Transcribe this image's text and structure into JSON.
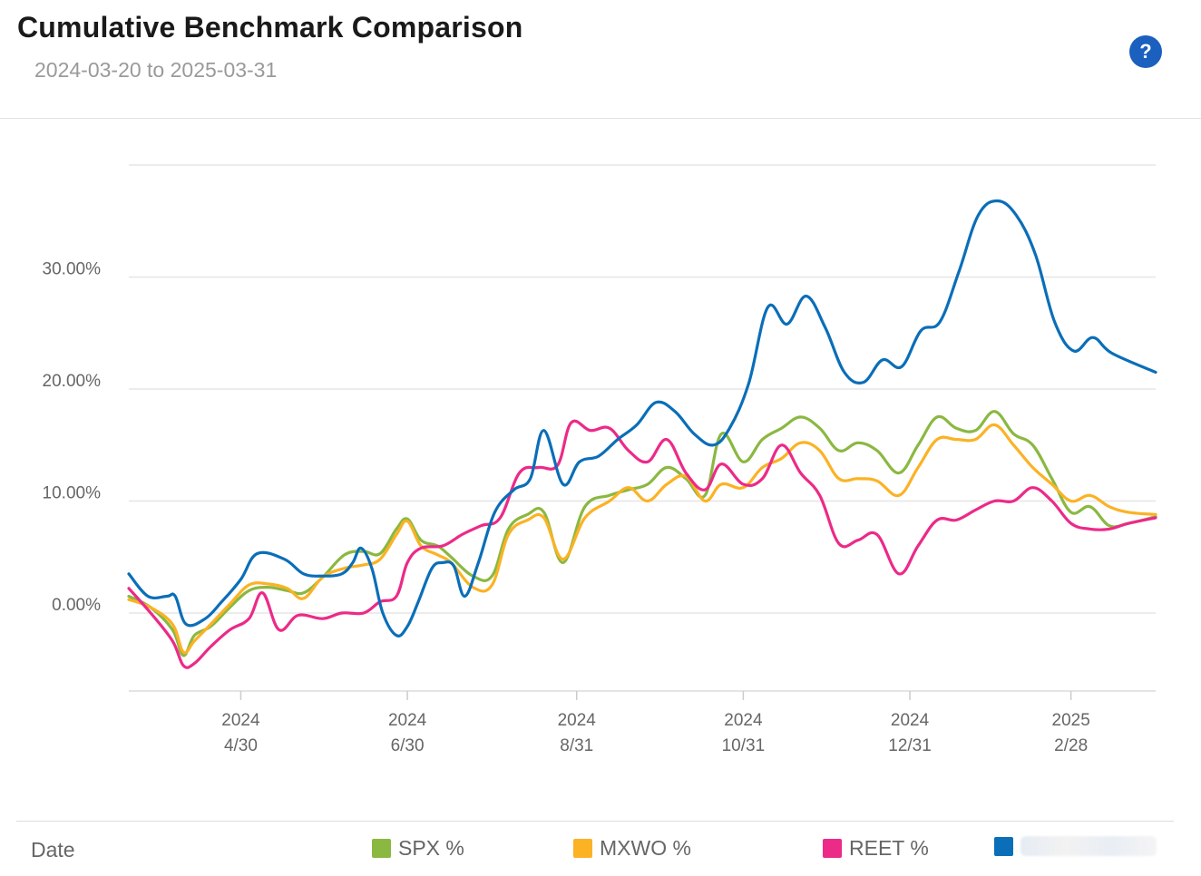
{
  "header": {
    "title": "Cumulative Benchmark Comparison",
    "subtitle": "2024-03-20 to 2025-03-31",
    "help_label": "?"
  },
  "footer": {
    "date_label": "Date"
  },
  "chart_data": {
    "type": "line",
    "title": "Cumulative Benchmark Comparison",
    "subtitle": "2024-03-20 to 2025-03-31",
    "x_range": [
      "2024-03-20",
      "2025-03-31"
    ],
    "ylim": [
      -7,
      40
    ],
    "y_ticks": [
      0,
      10,
      20,
      30
    ],
    "y_tick_labels": [
      "0.00%",
      "10.00%",
      "20.00%",
      "30.00%"
    ],
    "x_ticks": [
      {
        "date": "2024-04-30",
        "year": "2024",
        "label": "4/30"
      },
      {
        "date": "2024-06-30",
        "year": "2024",
        "label": "6/30"
      },
      {
        "date": "2024-08-31",
        "year": "2024",
        "label": "8/31"
      },
      {
        "date": "2024-10-31",
        "year": "2024",
        "label": "10/31"
      },
      {
        "date": "2024-12-31",
        "year": "2024",
        "label": "12/31"
      },
      {
        "date": "2025-02-28",
        "year": "2025",
        "label": "2/28"
      }
    ],
    "grid": "horizontal",
    "legend_position": "bottom",
    "series": [
      {
        "name": "SPX %",
        "color": "#8ab841",
        "points": [
          [
            "2024-03-20",
            1.5
          ],
          [
            "2024-03-28",
            0.5
          ],
          [
            "2024-04-05",
            -1.5
          ],
          [
            "2024-04-09",
            -3.8
          ],
          [
            "2024-04-13",
            -2.0
          ],
          [
            "2024-04-19",
            -1.2
          ],
          [
            "2024-04-26",
            0.5
          ],
          [
            "2024-05-03",
            2.0
          ],
          [
            "2024-05-10",
            2.3
          ],
          [
            "2024-05-17",
            2.0
          ],
          [
            "2024-05-23",
            1.8
          ],
          [
            "2024-05-30",
            3.2
          ],
          [
            "2024-06-07",
            5.2
          ],
          [
            "2024-06-14",
            5.5
          ],
          [
            "2024-06-20",
            5.3
          ],
          [
            "2024-06-26",
            7.5
          ],
          [
            "2024-06-30",
            8.4
          ],
          [
            "2024-07-05",
            6.5
          ],
          [
            "2024-07-11",
            6.0
          ],
          [
            "2024-07-16",
            5.0
          ],
          [
            "2024-07-24",
            3.3
          ],
          [
            "2024-07-31",
            3.3
          ],
          [
            "2024-08-06",
            7.5
          ],
          [
            "2024-08-13",
            8.8
          ],
          [
            "2024-08-19",
            9.0
          ],
          [
            "2024-08-26",
            4.5
          ],
          [
            "2024-09-03",
            9.5
          ],
          [
            "2024-09-12",
            10.5
          ],
          [
            "2024-09-19",
            11.0
          ],
          [
            "2024-09-26",
            11.5
          ],
          [
            "2024-10-03",
            13.0
          ],
          [
            "2024-10-10",
            12.0
          ],
          [
            "2024-10-17",
            10.5
          ],
          [
            "2024-10-23",
            16.0
          ],
          [
            "2024-10-31",
            13.5
          ],
          [
            "2024-11-07",
            15.5
          ],
          [
            "2024-11-14",
            16.5
          ],
          [
            "2024-11-21",
            17.5
          ],
          [
            "2024-11-28",
            16.5
          ],
          [
            "2024-12-05",
            14.5
          ],
          [
            "2024-12-12",
            15.2
          ],
          [
            "2024-12-19",
            14.5
          ],
          [
            "2024-12-27",
            12.5
          ],
          [
            "2025-01-03",
            15.0
          ],
          [
            "2025-01-10",
            17.5
          ],
          [
            "2025-01-17",
            16.5
          ],
          [
            "2025-01-24",
            16.3
          ],
          [
            "2025-01-31",
            18.0
          ],
          [
            "2025-02-07",
            16.0
          ],
          [
            "2025-02-14",
            15.0
          ],
          [
            "2025-02-21",
            12.0
          ],
          [
            "2025-02-28",
            9.0
          ],
          [
            "2025-03-07",
            9.5
          ],
          [
            "2025-03-14",
            7.8
          ],
          [
            "2025-03-21",
            8.0
          ],
          [
            "2025-03-31",
            8.6
          ]
        ]
      },
      {
        "name": "MXWO %",
        "color": "#fbb224",
        "points": [
          [
            "2024-03-20",
            1.2
          ],
          [
            "2024-03-28",
            0.5
          ],
          [
            "2024-04-05",
            -1.0
          ],
          [
            "2024-04-09",
            -3.5
          ],
          [
            "2024-04-13",
            -2.5
          ],
          [
            "2024-04-19",
            -1.0
          ],
          [
            "2024-04-26",
            0.8
          ],
          [
            "2024-05-03",
            2.5
          ],
          [
            "2024-05-10",
            2.6
          ],
          [
            "2024-05-17",
            2.2
          ],
          [
            "2024-05-23",
            1.3
          ],
          [
            "2024-05-30",
            3.2
          ],
          [
            "2024-06-07",
            4.0
          ],
          [
            "2024-06-14",
            4.3
          ],
          [
            "2024-06-20",
            4.8
          ],
          [
            "2024-06-26",
            7.0
          ],
          [
            "2024-06-30",
            8.2
          ],
          [
            "2024-07-05",
            6.0
          ],
          [
            "2024-07-11",
            5.2
          ],
          [
            "2024-07-16",
            4.5
          ],
          [
            "2024-07-24",
            2.3
          ],
          [
            "2024-07-31",
            2.5
          ],
          [
            "2024-08-06",
            7.0
          ],
          [
            "2024-08-13",
            8.3
          ],
          [
            "2024-08-19",
            8.5
          ],
          [
            "2024-08-26",
            4.8
          ],
          [
            "2024-09-03",
            8.5
          ],
          [
            "2024-09-12",
            10.0
          ],
          [
            "2024-09-19",
            11.2
          ],
          [
            "2024-09-26",
            10.0
          ],
          [
            "2024-10-03",
            11.5
          ],
          [
            "2024-10-10",
            12.2
          ],
          [
            "2024-10-17",
            10.0
          ],
          [
            "2024-10-23",
            11.5
          ],
          [
            "2024-10-31",
            11.2
          ],
          [
            "2024-11-07",
            13.0
          ],
          [
            "2024-11-14",
            13.8
          ],
          [
            "2024-11-21",
            15.2
          ],
          [
            "2024-11-28",
            14.5
          ],
          [
            "2024-12-05",
            12.0
          ],
          [
            "2024-12-12",
            12.0
          ],
          [
            "2024-12-19",
            11.8
          ],
          [
            "2024-12-27",
            10.5
          ],
          [
            "2025-01-03",
            13.0
          ],
          [
            "2025-01-10",
            15.5
          ],
          [
            "2025-01-17",
            15.5
          ],
          [
            "2025-01-24",
            15.5
          ],
          [
            "2025-01-31",
            16.8
          ],
          [
            "2025-02-07",
            15.0
          ],
          [
            "2025-02-14",
            13.0
          ],
          [
            "2025-02-21",
            11.5
          ],
          [
            "2025-02-28",
            10.0
          ],
          [
            "2025-03-07",
            10.5
          ],
          [
            "2025-03-14",
            9.5
          ],
          [
            "2025-03-21",
            9.0
          ],
          [
            "2025-03-31",
            8.8
          ]
        ]
      },
      {
        "name": "REET %",
        "color": "#ec2a88",
        "points": [
          [
            "2024-03-20",
            2.2
          ],
          [
            "2024-03-28",
            0.0
          ],
          [
            "2024-04-05",
            -2.5
          ],
          [
            "2024-04-09",
            -4.7
          ],
          [
            "2024-04-13",
            -4.5
          ],
          [
            "2024-04-19",
            -3.0
          ],
          [
            "2024-04-26",
            -1.5
          ],
          [
            "2024-05-03",
            -0.5
          ],
          [
            "2024-05-08",
            1.8
          ],
          [
            "2024-05-14",
            -1.5
          ],
          [
            "2024-05-21",
            -0.2
          ],
          [
            "2024-05-30",
            -0.5
          ],
          [
            "2024-06-06",
            0.0
          ],
          [
            "2024-06-14",
            0.0
          ],
          [
            "2024-06-20",
            1.0
          ],
          [
            "2024-06-26",
            1.5
          ],
          [
            "2024-06-30",
            4.5
          ],
          [
            "2024-07-05",
            5.8
          ],
          [
            "2024-07-13",
            6.0
          ],
          [
            "2024-07-20",
            7.0
          ],
          [
            "2024-07-27",
            7.8
          ],
          [
            "2024-08-03",
            8.5
          ],
          [
            "2024-08-10",
            12.5
          ],
          [
            "2024-08-17",
            13.0
          ],
          [
            "2024-08-24",
            13.2
          ],
          [
            "2024-08-29",
            17.0
          ],
          [
            "2024-09-05",
            16.3
          ],
          [
            "2024-09-12",
            16.5
          ],
          [
            "2024-09-19",
            14.5
          ],
          [
            "2024-09-26",
            13.5
          ],
          [
            "2024-10-03",
            15.5
          ],
          [
            "2024-10-10",
            12.5
          ],
          [
            "2024-10-17",
            11.0
          ],
          [
            "2024-10-23",
            13.3
          ],
          [
            "2024-10-31",
            11.5
          ],
          [
            "2024-11-07",
            12.0
          ],
          [
            "2024-11-14",
            15.0
          ],
          [
            "2024-11-21",
            12.5
          ],
          [
            "2024-11-28",
            10.5
          ],
          [
            "2024-12-05",
            6.2
          ],
          [
            "2024-12-12",
            6.5
          ],
          [
            "2024-12-19",
            7.0
          ],
          [
            "2024-12-27",
            3.5
          ],
          [
            "2025-01-03",
            6.0
          ],
          [
            "2025-01-10",
            8.3
          ],
          [
            "2025-01-17",
            8.3
          ],
          [
            "2025-01-24",
            9.2
          ],
          [
            "2025-01-31",
            10.0
          ],
          [
            "2025-02-07",
            10.0
          ],
          [
            "2025-02-14",
            11.2
          ],
          [
            "2025-02-21",
            10.0
          ],
          [
            "2025-02-28",
            8.0
          ],
          [
            "2025-03-07",
            7.5
          ],
          [
            "2025-03-14",
            7.5
          ],
          [
            "2025-03-21",
            8.0
          ],
          [
            "2025-03-31",
            8.5
          ]
        ]
      },
      {
        "name": "",
        "color": "#0a6eb8",
        "points": [
          [
            "2024-03-20",
            3.5
          ],
          [
            "2024-03-27",
            1.5
          ],
          [
            "2024-04-03",
            1.5
          ],
          [
            "2024-04-06",
            1.5
          ],
          [
            "2024-04-10",
            -1.0
          ],
          [
            "2024-04-17",
            -0.5
          ],
          [
            "2024-04-23",
            1.0
          ],
          [
            "2024-04-30",
            3.0
          ],
          [
            "2024-05-06",
            5.3
          ],
          [
            "2024-05-16",
            4.8
          ],
          [
            "2024-05-23",
            3.5
          ],
          [
            "2024-05-30",
            3.3
          ],
          [
            "2024-06-06",
            3.5
          ],
          [
            "2024-06-10",
            4.5
          ],
          [
            "2024-06-13",
            5.8
          ],
          [
            "2024-06-17",
            4.0
          ],
          [
            "2024-06-21",
            0.0
          ],
          [
            "2024-06-26",
            -2.0
          ],
          [
            "2024-06-30",
            -1.2
          ],
          [
            "2024-07-04",
            1.0
          ],
          [
            "2024-07-09",
            4.0
          ],
          [
            "2024-07-13",
            4.5
          ],
          [
            "2024-07-17",
            4.2
          ],
          [
            "2024-07-21",
            1.5
          ],
          [
            "2024-07-26",
            4.5
          ],
          [
            "2024-08-01",
            9.0
          ],
          [
            "2024-08-08",
            11.0
          ],
          [
            "2024-08-14",
            12.0
          ],
          [
            "2024-08-19",
            16.3
          ],
          [
            "2024-08-26",
            11.5
          ],
          [
            "2024-09-01",
            13.5
          ],
          [
            "2024-09-08",
            14.0
          ],
          [
            "2024-09-15",
            15.5
          ],
          [
            "2024-09-22",
            16.8
          ],
          [
            "2024-09-29",
            18.8
          ],
          [
            "2024-10-06",
            18.0
          ],
          [
            "2024-10-13",
            16.0
          ],
          [
            "2024-10-20",
            15.0
          ],
          [
            "2024-10-26",
            16.5
          ],
          [
            "2024-11-02",
            20.5
          ],
          [
            "2024-11-09",
            27.3
          ],
          [
            "2024-11-16",
            25.8
          ],
          [
            "2024-11-23",
            28.3
          ],
          [
            "2024-11-30",
            25.5
          ],
          [
            "2024-12-07",
            21.5
          ],
          [
            "2024-12-14",
            20.6
          ],
          [
            "2024-12-21",
            22.6
          ],
          [
            "2024-12-28",
            22.0
          ],
          [
            "2025-01-04",
            25.2
          ],
          [
            "2025-01-11",
            26.0
          ],
          [
            "2025-01-18",
            30.5
          ],
          [
            "2025-01-25",
            35.5
          ],
          [
            "2025-02-01",
            36.8
          ],
          [
            "2025-02-08",
            35.5
          ],
          [
            "2025-02-15",
            32.0
          ],
          [
            "2025-02-22",
            26.0
          ],
          [
            "2025-03-01",
            23.4
          ],
          [
            "2025-03-08",
            24.6
          ],
          [
            "2025-03-15",
            23.2
          ],
          [
            "2025-03-31",
            21.5
          ]
        ]
      }
    ]
  }
}
